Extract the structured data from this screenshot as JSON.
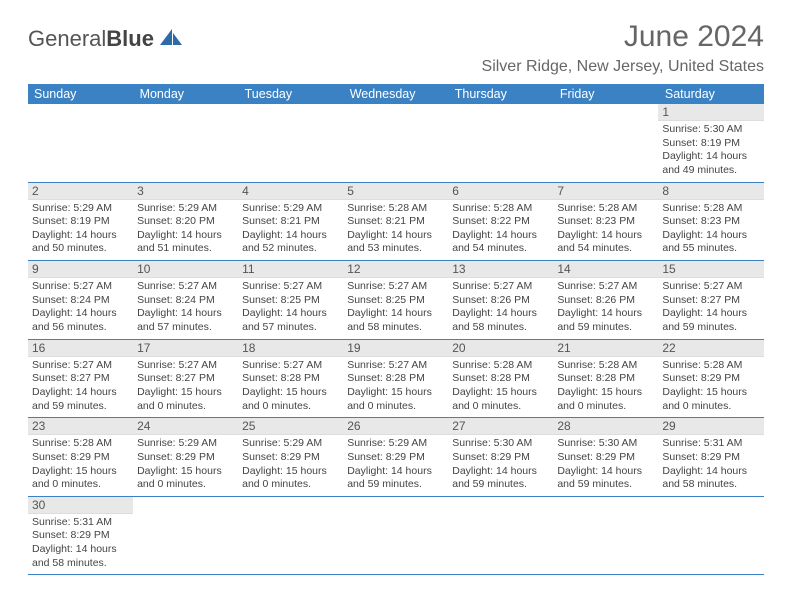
{
  "brand": {
    "part1": "General",
    "part2": "Blue"
  },
  "title": "June 2024",
  "location": "Silver Ridge, New Jersey, United States",
  "colors": {
    "header_bg": "#3b82c4",
    "header_fg": "#ffffff",
    "daynum_bg": "#e8e8e8",
    "border": "#3b82c4",
    "text": "#444444",
    "title_color": "#666666"
  },
  "day_headers": [
    "Sunday",
    "Monday",
    "Tuesday",
    "Wednesday",
    "Thursday",
    "Friday",
    "Saturday"
  ],
  "weeks": [
    [
      null,
      null,
      null,
      null,
      null,
      null,
      {
        "n": "1",
        "sr": "5:30 AM",
        "ss": "8:19 PM",
        "dl": "14 hours and 49 minutes."
      }
    ],
    [
      {
        "n": "2",
        "sr": "5:29 AM",
        "ss": "8:19 PM",
        "dl": "14 hours and 50 minutes."
      },
      {
        "n": "3",
        "sr": "5:29 AM",
        "ss": "8:20 PM",
        "dl": "14 hours and 51 minutes."
      },
      {
        "n": "4",
        "sr": "5:29 AM",
        "ss": "8:21 PM",
        "dl": "14 hours and 52 minutes."
      },
      {
        "n": "5",
        "sr": "5:28 AM",
        "ss": "8:21 PM",
        "dl": "14 hours and 53 minutes."
      },
      {
        "n": "6",
        "sr": "5:28 AM",
        "ss": "8:22 PM",
        "dl": "14 hours and 54 minutes."
      },
      {
        "n": "7",
        "sr": "5:28 AM",
        "ss": "8:23 PM",
        "dl": "14 hours and 54 minutes."
      },
      {
        "n": "8",
        "sr": "5:28 AM",
        "ss": "8:23 PM",
        "dl": "14 hours and 55 minutes."
      }
    ],
    [
      {
        "n": "9",
        "sr": "5:27 AM",
        "ss": "8:24 PM",
        "dl": "14 hours and 56 minutes."
      },
      {
        "n": "10",
        "sr": "5:27 AM",
        "ss": "8:24 PM",
        "dl": "14 hours and 57 minutes."
      },
      {
        "n": "11",
        "sr": "5:27 AM",
        "ss": "8:25 PM",
        "dl": "14 hours and 57 minutes."
      },
      {
        "n": "12",
        "sr": "5:27 AM",
        "ss": "8:25 PM",
        "dl": "14 hours and 58 minutes."
      },
      {
        "n": "13",
        "sr": "5:27 AM",
        "ss": "8:26 PM",
        "dl": "14 hours and 58 minutes."
      },
      {
        "n": "14",
        "sr": "5:27 AM",
        "ss": "8:26 PM",
        "dl": "14 hours and 59 minutes."
      },
      {
        "n": "15",
        "sr": "5:27 AM",
        "ss": "8:27 PM",
        "dl": "14 hours and 59 minutes."
      }
    ],
    [
      {
        "n": "16",
        "sr": "5:27 AM",
        "ss": "8:27 PM",
        "dl": "14 hours and 59 minutes."
      },
      {
        "n": "17",
        "sr": "5:27 AM",
        "ss": "8:27 PM",
        "dl": "15 hours and 0 minutes."
      },
      {
        "n": "18",
        "sr": "5:27 AM",
        "ss": "8:28 PM",
        "dl": "15 hours and 0 minutes."
      },
      {
        "n": "19",
        "sr": "5:27 AM",
        "ss": "8:28 PM",
        "dl": "15 hours and 0 minutes."
      },
      {
        "n": "20",
        "sr": "5:28 AM",
        "ss": "8:28 PM",
        "dl": "15 hours and 0 minutes."
      },
      {
        "n": "21",
        "sr": "5:28 AM",
        "ss": "8:28 PM",
        "dl": "15 hours and 0 minutes."
      },
      {
        "n": "22",
        "sr": "5:28 AM",
        "ss": "8:29 PM",
        "dl": "15 hours and 0 minutes."
      }
    ],
    [
      {
        "n": "23",
        "sr": "5:28 AM",
        "ss": "8:29 PM",
        "dl": "15 hours and 0 minutes."
      },
      {
        "n": "24",
        "sr": "5:29 AM",
        "ss": "8:29 PM",
        "dl": "15 hours and 0 minutes."
      },
      {
        "n": "25",
        "sr": "5:29 AM",
        "ss": "8:29 PM",
        "dl": "15 hours and 0 minutes."
      },
      {
        "n": "26",
        "sr": "5:29 AM",
        "ss": "8:29 PM",
        "dl": "14 hours and 59 minutes."
      },
      {
        "n": "27",
        "sr": "5:30 AM",
        "ss": "8:29 PM",
        "dl": "14 hours and 59 minutes."
      },
      {
        "n": "28",
        "sr": "5:30 AM",
        "ss": "8:29 PM",
        "dl": "14 hours and 59 minutes."
      },
      {
        "n": "29",
        "sr": "5:31 AM",
        "ss": "8:29 PM",
        "dl": "14 hours and 58 minutes."
      }
    ],
    [
      {
        "n": "30",
        "sr": "5:31 AM",
        "ss": "8:29 PM",
        "dl": "14 hours and 58 minutes."
      },
      null,
      null,
      null,
      null,
      null,
      null
    ]
  ],
  "labels": {
    "sunrise": "Sunrise: ",
    "sunset": "Sunset: ",
    "daylight": "Daylight: "
  }
}
